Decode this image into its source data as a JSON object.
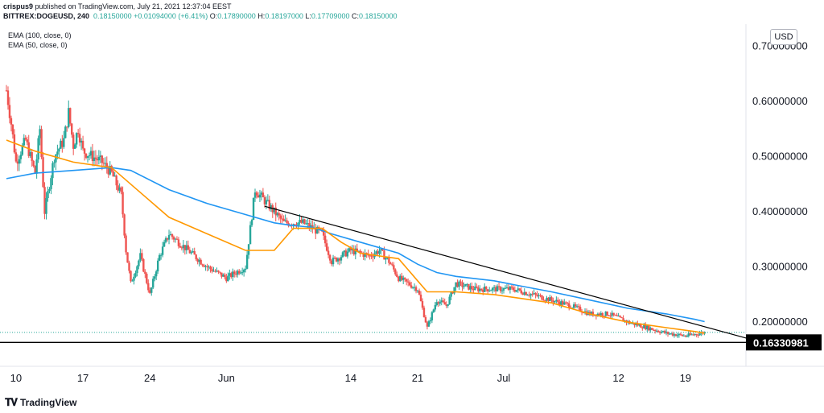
{
  "header": {
    "author": "crispus9",
    "published_text": " published on TradingView.com, July 21, 2021 12:37:04 EEST",
    "symbol": "BITTREX:DOGEUSD, 240",
    "open_label": "O:",
    "open": "0.17890000",
    "high_label": "H:",
    "high": "0.18197000",
    "low_label": "L:",
    "low": "0.17709000",
    "close_label": "C:",
    "close": "0.18150000",
    "last": "0.18150000",
    "change": "+0.01094000 (+6.41%)"
  },
  "currency_button": "USD",
  "footer": {
    "logo_text": "TradingView"
  },
  "colors": {
    "up": "#26a69a",
    "down": "#ef5350",
    "ema100": "#2196f3",
    "ema50": "#ff9800",
    "trendline": "#000000",
    "support": "#000000"
  },
  "chart_data": {
    "type": "candlestick",
    "title": "BITTREX:DOGEUSD, 240",
    "ylabel": "USD",
    "ylim": [
      0.12,
      0.74
    ],
    "y_ticks": [
      "0.70000000",
      "0.60000000",
      "0.50000000",
      "0.40000000",
      "0.30000000",
      "0.20000000"
    ],
    "y_tick_values": [
      0.7,
      0.6,
      0.5,
      0.4,
      0.3,
      0.2
    ],
    "x_labels": [
      "10",
      "17",
      "24",
      "Jun",
      "14",
      "21",
      "Jul",
      "12",
      "19"
    ],
    "x_label_days": [
      0,
      7,
      14,
      22,
      35,
      42,
      51,
      63,
      70
    ],
    "xlim_days": [
      -1,
      77
    ],
    "start_date": "May 10, 2021",
    "indicators": [
      {
        "name": "EMA (100, close, 0)",
        "color": "#2196f3",
        "points": [
          [
            -1,
            0.46
          ],
          [
            2,
            0.47
          ],
          [
            6,
            0.475
          ],
          [
            10,
            0.48
          ],
          [
            12,
            0.475
          ],
          [
            16,
            0.44
          ],
          [
            20,
            0.415
          ],
          [
            24,
            0.395
          ],
          [
            27,
            0.38
          ],
          [
            29,
            0.375
          ],
          [
            31,
            0.372
          ],
          [
            33,
            0.36
          ],
          [
            36,
            0.345
          ],
          [
            40,
            0.325
          ],
          [
            42,
            0.305
          ],
          [
            44,
            0.29
          ],
          [
            46,
            0.283
          ],
          [
            50,
            0.275
          ],
          [
            52,
            0.268
          ],
          [
            56,
            0.255
          ],
          [
            60,
            0.24
          ],
          [
            64,
            0.225
          ],
          [
            68,
            0.215
          ],
          [
            71,
            0.205
          ],
          [
            72,
            0.201
          ]
        ]
      },
      {
        "name": "EMA (50, close, 0)",
        "color": "#ff9800",
        "points": [
          [
            -1,
            0.53
          ],
          [
            2,
            0.51
          ],
          [
            6,
            0.49
          ],
          [
            10,
            0.48
          ],
          [
            12,
            0.45
          ],
          [
            16,
            0.39
          ],
          [
            20,
            0.36
          ],
          [
            24,
            0.33
          ],
          [
            27,
            0.33
          ],
          [
            29,
            0.37
          ],
          [
            32,
            0.37
          ],
          [
            34,
            0.345
          ],
          [
            36,
            0.325
          ],
          [
            40,
            0.315
          ],
          [
            42,
            0.275
          ],
          [
            43,
            0.255
          ],
          [
            46,
            0.255
          ],
          [
            50,
            0.25
          ],
          [
            52,
            0.245
          ],
          [
            56,
            0.235
          ],
          [
            60,
            0.215
          ],
          [
            64,
            0.2
          ],
          [
            68,
            0.19
          ],
          [
            71,
            0.183
          ],
          [
            72,
            0.18
          ]
        ]
      }
    ],
    "price_path": [
      [
        -1,
        0.62
      ],
      [
        -0.5,
        0.56
      ],
      [
        0,
        0.49
      ],
      [
        1,
        0.53
      ],
      [
        2,
        0.47
      ],
      [
        2.5,
        0.55
      ],
      [
        3,
        0.4
      ],
      [
        4,
        0.5
      ],
      [
        5,
        0.53
      ],
      [
        5.5,
        0.58
      ],
      [
        6,
        0.52
      ],
      [
        6.5,
        0.55
      ],
      [
        7,
        0.51
      ],
      [
        8,
        0.5
      ],
      [
        9,
        0.49
      ],
      [
        10,
        0.47
      ],
      [
        11,
        0.43
      ],
      [
        11.5,
        0.33
      ],
      [
        12,
        0.27
      ],
      [
        13,
        0.32
      ],
      [
        14,
        0.25
      ],
      [
        15,
        0.32
      ],
      [
        16,
        0.36
      ],
      [
        18,
        0.33
      ],
      [
        20,
        0.3
      ],
      [
        22,
        0.28
      ],
      [
        24,
        0.3
      ],
      [
        25,
        0.44
      ],
      [
        26,
        0.42
      ],
      [
        27,
        0.4
      ],
      [
        28,
        0.38
      ],
      [
        30,
        0.38
      ],
      [
        32,
        0.36
      ],
      [
        33,
        0.31
      ],
      [
        35,
        0.33
      ],
      [
        37,
        0.32
      ],
      [
        38,
        0.33
      ],
      [
        39,
        0.31
      ],
      [
        40,
        0.28
      ],
      [
        42,
        0.26
      ],
      [
        43,
        0.19
      ],
      [
        44,
        0.24
      ],
      [
        45,
        0.23
      ],
      [
        46,
        0.27
      ],
      [
        48,
        0.26
      ],
      [
        50,
        0.26
      ],
      [
        52,
        0.26
      ],
      [
        54,
        0.25
      ],
      [
        56,
        0.24
      ],
      [
        58,
        0.23
      ],
      [
        60,
        0.215
      ],
      [
        62,
        0.215
      ],
      [
        64,
        0.2
      ],
      [
        66,
        0.19
      ],
      [
        68,
        0.18
      ],
      [
        70,
        0.175
      ],
      [
        71,
        0.178
      ],
      [
        72,
        0.1815
      ]
    ],
    "trendline": {
      "start": [
        26,
        0.41
      ],
      "end": [
        77,
        0.168
      ]
    },
    "support_level": {
      "value": 0.16330981,
      "label": "0.16330981"
    },
    "dotted_level": {
      "value": 0.1815
    }
  }
}
